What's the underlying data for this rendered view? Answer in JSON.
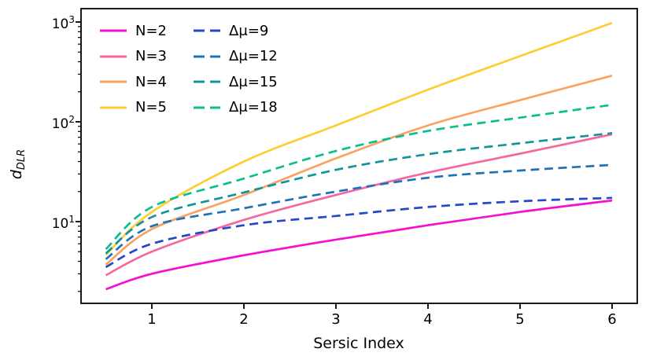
{
  "figure": {
    "xlabel": "Sersic Index",
    "ylabel": {
      "main": "d",
      "sub": "DLR"
    },
    "background": "#ffffff",
    "frame_color": "#000000"
  },
  "chart_data": {
    "type": "line",
    "title": "",
    "xlabel": "Sersic Index",
    "ylabel": "d_DLR",
    "yscale": "log",
    "xlim": [
      0.23,
      6.27
    ],
    "ylim": [
      1.52,
      1360
    ],
    "grid": false,
    "legend_position": "upper left, two columns",
    "x": [
      0.5,
      1,
      2,
      3,
      4,
      5,
      6
    ],
    "xticks": [
      1,
      2,
      3,
      4,
      5,
      6
    ],
    "yticks": [
      {
        "base": "10",
        "exp": "1",
        "value": 10
      },
      {
        "base": "10",
        "exp": "2",
        "value": 100
      },
      {
        "base": "10",
        "exp": "3",
        "value": 1000
      }
    ],
    "series": [
      {
        "key": "n2",
        "name": "N=2",
        "style": "solid",
        "color": "#f50fd0",
        "values": [
          2.1,
          3.0,
          4.6,
          6.6,
          9.2,
          12.5,
          16.3
        ]
      },
      {
        "key": "n3",
        "name": "N=3",
        "style": "solid",
        "color": "#f7679f",
        "values": [
          2.9,
          5.0,
          10.4,
          18.5,
          31,
          48,
          75
        ]
      },
      {
        "key": "n4",
        "name": "N=4",
        "style": "solid",
        "color": "#faa261",
        "values": [
          3.7,
          8.4,
          18.5,
          43,
          92,
          165,
          290
        ]
      },
      {
        "key": "n5",
        "name": "N=5",
        "style": "solid",
        "color": "#fcce31",
        "values": [
          4.65,
          12.5,
          40,
          92,
          210,
          455,
          980
        ]
      },
      {
        "key": "dmu9",
        "name": "Δμ=9",
        "style": "dashed",
        "color": "#2348c9",
        "values": [
          3.5,
          6.0,
          9.2,
          11.4,
          14.0,
          16.0,
          17.3
        ]
      },
      {
        "key": "dmu12",
        "name": "Δμ=12",
        "style": "dashed",
        "color": "#1e72b8",
        "values": [
          4.2,
          9.0,
          13.6,
          20,
          27.5,
          32.5,
          37
        ]
      },
      {
        "key": "dmu15",
        "name": "Δμ=15",
        "style": "dashed",
        "color": "#12949e",
        "values": [
          4.8,
          11.1,
          19.6,
          33,
          47.4,
          61,
          77
        ]
      },
      {
        "key": "dmu18",
        "name": "Δμ=18",
        "style": "dashed",
        "color": "#0abf8d",
        "values": [
          5.3,
          14,
          27,
          51,
          81,
          110,
          148
        ]
      }
    ]
  }
}
